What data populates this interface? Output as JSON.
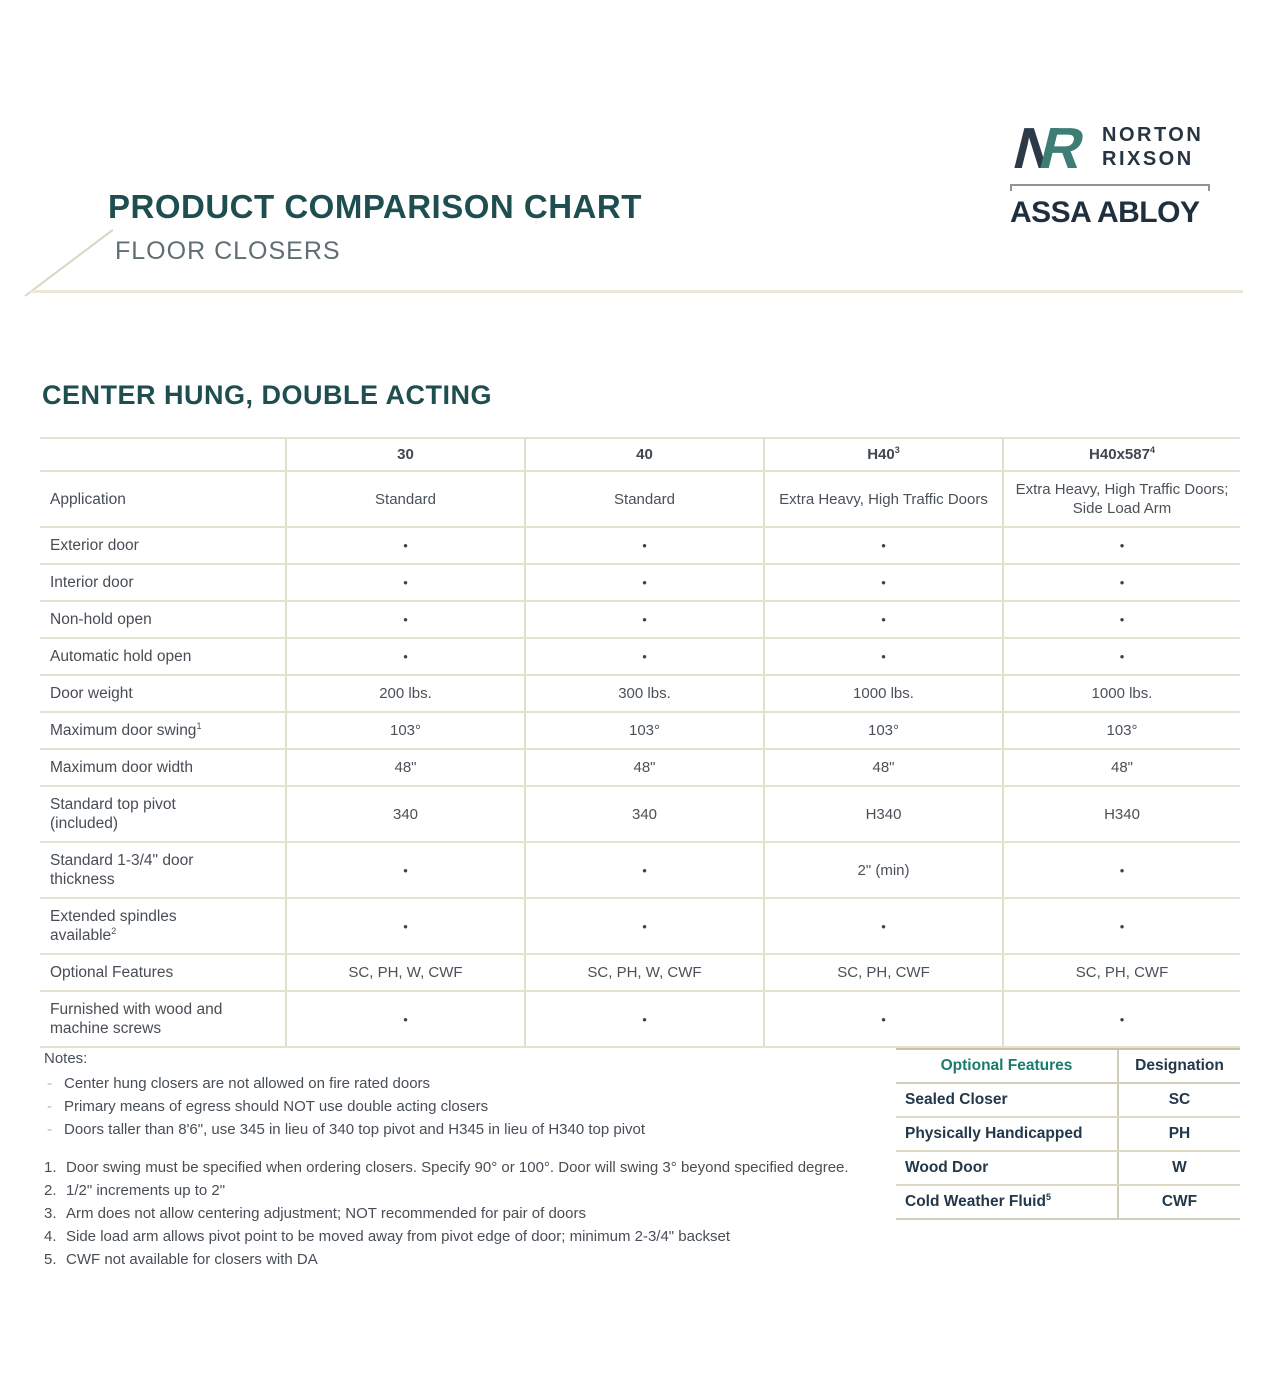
{
  "colors": {
    "teal_heading": "#1E4E50",
    "subtitle_gray": "#5E6E71",
    "body_text": "#4A5158",
    "navy_text": "#22384A",
    "feature_green": "#1A7C6B",
    "table_line_beige": "#E6E2D0",
    "logo_navy": "#2B3A49",
    "logo_teal": "#3E7D74"
  },
  "logo": {
    "monogram": "NR",
    "brand_line1": "NORTON",
    "brand_line2": "RIXSON",
    "parent_brand": "ASSA ABLOY"
  },
  "header": {
    "title": "PRODUCT COMPARISON CHART",
    "subtitle": "FLOOR CLOSERS"
  },
  "section_title": "CENTER HUNG, DOUBLE ACTING",
  "comparison_table": {
    "columns": [
      {
        "text": "30",
        "sup": ""
      },
      {
        "text": "40",
        "sup": ""
      },
      {
        "text": "H40",
        "sup": "3"
      },
      {
        "text": "H40x587",
        "sup": "4"
      }
    ],
    "rows": [
      {
        "label_lines": [
          "Application"
        ],
        "sup": "",
        "values": [
          "Standard",
          "Standard",
          "Extra Heavy, High Traffic Doors",
          "Extra Heavy, High Traffic Doors; Side Load Arm"
        ]
      },
      {
        "label_lines": [
          "Exterior door"
        ],
        "sup": "",
        "values": [
          "•",
          "•",
          "•",
          "•"
        ]
      },
      {
        "label_lines": [
          "Interior door"
        ],
        "sup": "",
        "values": [
          "•",
          "•",
          "•",
          "•"
        ]
      },
      {
        "label_lines": [
          "Non-hold open"
        ],
        "sup": "",
        "values": [
          "•",
          "•",
          "•",
          "•"
        ]
      },
      {
        "label_lines": [
          "Automatic hold open"
        ],
        "sup": "",
        "values": [
          "•",
          "•",
          "•",
          "•"
        ]
      },
      {
        "label_lines": [
          "Door weight"
        ],
        "sup": "",
        "values": [
          "200 lbs.",
          "300 lbs.",
          "1000 lbs.",
          "1000 lbs."
        ]
      },
      {
        "label_lines": [
          "Maximum door swing"
        ],
        "sup": "1",
        "values": [
          "103°",
          "103°",
          "103°",
          "103°"
        ]
      },
      {
        "label_lines": [
          "Maximum door width"
        ],
        "sup": "",
        "values": [
          "48\"",
          "48\"",
          "48\"",
          "48\""
        ]
      },
      {
        "label_lines": [
          "Standard top pivot",
          "(included)"
        ],
        "sup": "",
        "values": [
          "340",
          "340",
          "H340",
          "H340"
        ]
      },
      {
        "label_lines": [
          "Standard 1-3/4\" door",
          "thickness"
        ],
        "sup": "",
        "values": [
          "•",
          "•",
          "2\" (min)",
          "•"
        ]
      },
      {
        "label_lines": [
          "Extended spindles",
          "available"
        ],
        "sup": "2",
        "values": [
          "•",
          "•",
          "•",
          "•"
        ]
      },
      {
        "label_lines": [
          "Optional Features"
        ],
        "sup": "",
        "values": [
          "SC, PH, W, CWF",
          "SC, PH, W, CWF",
          "SC, PH, CWF",
          "SC, PH, CWF"
        ]
      },
      {
        "label_lines": [
          "Furnished with wood and",
          "machine screws"
        ],
        "sup": "",
        "values": [
          "•",
          "•",
          "•",
          "•"
        ]
      }
    ]
  },
  "notes": {
    "heading": "Notes:",
    "bullets": [
      "Center hung closers are not allowed on fire rated doors",
      "Primary means of egress should NOT use double acting closers",
      "Doors taller than 8'6\", use 345 in lieu of 340 top pivot and H345 in lieu of H340 top pivot"
    ],
    "numbered": [
      {
        "num": "1.",
        "text": "Door swing must be specified when ordering closers. Specify 90° or 100°. Door will swing 3° beyond specified degree."
      },
      {
        "num": "2.",
        "text": "1/2\" increments up to 2\""
      },
      {
        "num": "3.",
        "text": "Arm does not allow centering adjustment; NOT recommended for pair of doors"
      },
      {
        "num": "4.",
        "text": "Side load arm allows pivot point to be moved away from pivot edge of door; minimum 2-3/4\" backset"
      },
      {
        "num": "5.",
        "text": "CWF not available for closers with DA"
      }
    ]
  },
  "features_table": {
    "headers": [
      "Optional Features",
      "Designation"
    ],
    "rows": [
      {
        "feature": "Sealed Closer",
        "sup": "",
        "designation": "SC"
      },
      {
        "feature": "Physically Handicapped",
        "sup": "",
        "designation": "PH"
      },
      {
        "feature": "Wood Door",
        "sup": "",
        "designation": "W"
      },
      {
        "feature": "Cold Weather Fluid",
        "sup": "5",
        "designation": "CWF"
      }
    ]
  }
}
